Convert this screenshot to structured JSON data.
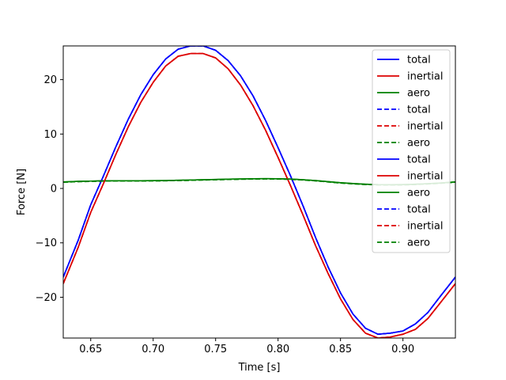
{
  "chart_data": {
    "type": "line",
    "xlabel": "Time [s]",
    "ylabel": "Force [N]",
    "xlim": [
      0.628,
      0.942
    ],
    "ylim": [
      -27.5,
      26.2
    ],
    "xticks": [
      0.65,
      0.7,
      0.75,
      0.8,
      0.85,
      0.9
    ],
    "xtick_labels": [
      "0.65",
      "0.70",
      "0.75",
      "0.80",
      "0.85",
      "0.90"
    ],
    "yticks": [
      -20,
      -10,
      0,
      10,
      20
    ],
    "ytick_labels": [
      "−20",
      "−10",
      "0",
      "10",
      "20"
    ],
    "grid": false,
    "legend_position": "top-right",
    "x": [
      0.628,
      0.64,
      0.65,
      0.66,
      0.67,
      0.68,
      0.69,
      0.7,
      0.71,
      0.72,
      0.73,
      0.74,
      0.75,
      0.76,
      0.77,
      0.78,
      0.79,
      0.8,
      0.81,
      0.82,
      0.83,
      0.84,
      0.85,
      0.86,
      0.87,
      0.88,
      0.89,
      0.9,
      0.91,
      0.92,
      0.93,
      0.942
    ],
    "series": [
      {
        "name": "total",
        "color": "#0000ff",
        "style": "solid",
        "y": [
          -16.3,
          -9.5,
          -3.0,
          2.2,
          7.6,
          12.7,
          17.2,
          20.9,
          23.8,
          25.6,
          26.2,
          26.2,
          25.4,
          23.5,
          20.7,
          17.0,
          12.5,
          7.5,
          2.3,
          -3.2,
          -9.0,
          -14.4,
          -19.2,
          -23.1,
          -25.7,
          -26.8,
          -26.6,
          -26.2,
          -24.9,
          -22.8,
          -19.8,
          -16.3
        ]
      },
      {
        "name": "inertial",
        "color": "#dd0000",
        "style": "solid",
        "y": [
          -17.5,
          -10.8,
          -4.4,
          0.8,
          6.2,
          11.3,
          15.8,
          19.5,
          22.5,
          24.3,
          24.8,
          24.8,
          24.0,
          22.0,
          19.0,
          15.2,
          10.7,
          5.7,
          0.5,
          -4.9,
          -10.5,
          -15.6,
          -20.3,
          -24.1,
          -26.6,
          -27.5,
          -27.3,
          -26.8,
          -25.9,
          -23.9,
          -21.0,
          -17.5
        ]
      },
      {
        "name": "aero",
        "color": "#008000",
        "style": "solid",
        "y": [
          1.2,
          1.3,
          1.35,
          1.4,
          1.42,
          1.42,
          1.42,
          1.43,
          1.45,
          1.5,
          1.55,
          1.6,
          1.65,
          1.7,
          1.75,
          1.78,
          1.8,
          1.78,
          1.72,
          1.6,
          1.45,
          1.25,
          1.05,
          0.9,
          0.78,
          0.7,
          0.68,
          0.7,
          0.78,
          0.88,
          1.0,
          1.2
        ]
      },
      {
        "name": "total",
        "color": "#0000ff",
        "style": "dashed",
        "y": [
          -16.3,
          -9.5,
          -3.0,
          2.2,
          7.6,
          12.7,
          17.2,
          20.9,
          23.8,
          25.6,
          26.2,
          26.2,
          25.4,
          23.5,
          20.7,
          17.0,
          12.5,
          7.5,
          2.3,
          -3.2,
          -9.0,
          -14.4,
          -19.2,
          -23.1,
          -25.7,
          -26.8,
          -26.6,
          -26.2,
          -24.9,
          -22.8,
          -19.8,
          -16.3
        ]
      },
      {
        "name": "inertial",
        "color": "#dd0000",
        "style": "dashed",
        "y": [
          -17.5,
          -10.8,
          -4.4,
          0.8,
          6.2,
          11.3,
          15.8,
          19.5,
          22.5,
          24.3,
          24.8,
          24.8,
          24.0,
          22.0,
          19.0,
          15.2,
          10.7,
          5.7,
          0.5,
          -4.9,
          -10.5,
          -15.6,
          -20.3,
          -24.1,
          -26.6,
          -27.5,
          -27.3,
          -26.8,
          -25.9,
          -23.9,
          -21.0,
          -17.5
        ]
      },
      {
        "name": "aero",
        "color": "#008000",
        "style": "dashed",
        "y": [
          1.15,
          1.25,
          1.3,
          1.35,
          1.37,
          1.38,
          1.38,
          1.39,
          1.41,
          1.45,
          1.5,
          1.55,
          1.6,
          1.65,
          1.7,
          1.73,
          1.75,
          1.73,
          1.67,
          1.55,
          1.4,
          1.2,
          1.0,
          0.85,
          0.73,
          0.65,
          0.63,
          0.65,
          0.73,
          0.83,
          0.95,
          1.15
        ]
      },
      {
        "name": "total",
        "color": "#0000ff",
        "style": "solid",
        "y": [
          -16.3,
          -9.5,
          -3.0,
          2.2,
          7.6,
          12.7,
          17.2,
          20.9,
          23.8,
          25.6,
          26.2,
          26.2,
          25.4,
          23.5,
          20.7,
          17.0,
          12.5,
          7.5,
          2.3,
          -3.2,
          -9.0,
          -14.4,
          -19.2,
          -23.1,
          -25.7,
          -26.8,
          -26.6,
          -26.2,
          -24.9,
          -22.8,
          -19.8,
          -16.3
        ]
      },
      {
        "name": "inertial",
        "color": "#dd0000",
        "style": "solid",
        "y": [
          -17.5,
          -10.8,
          -4.4,
          0.8,
          6.2,
          11.3,
          15.8,
          19.5,
          22.5,
          24.3,
          24.8,
          24.8,
          24.0,
          22.0,
          19.0,
          15.2,
          10.7,
          5.7,
          0.5,
          -4.9,
          -10.5,
          -15.6,
          -20.3,
          -24.1,
          -26.6,
          -27.5,
          -27.3,
          -26.8,
          -25.9,
          -23.9,
          -21.0,
          -17.5
        ]
      },
      {
        "name": "aero",
        "color": "#008000",
        "style": "solid",
        "y": [
          1.2,
          1.3,
          1.35,
          1.4,
          1.42,
          1.42,
          1.42,
          1.43,
          1.45,
          1.5,
          1.55,
          1.6,
          1.65,
          1.7,
          1.75,
          1.78,
          1.8,
          1.78,
          1.72,
          1.6,
          1.45,
          1.25,
          1.05,
          0.9,
          0.78,
          0.7,
          0.68,
          0.7,
          0.78,
          0.88,
          1.0,
          1.2
        ]
      },
      {
        "name": "total",
        "color": "#0000ff",
        "style": "dashed",
        "y": [
          -16.3,
          -9.5,
          -3.0,
          2.2,
          7.6,
          12.7,
          17.2,
          20.9,
          23.8,
          25.6,
          26.2,
          26.2,
          25.4,
          23.5,
          20.7,
          17.0,
          12.5,
          7.5,
          2.3,
          -3.2,
          -9.0,
          -14.4,
          -19.2,
          -23.1,
          -25.7,
          -26.8,
          -26.6,
          -26.2,
          -24.9,
          -22.8,
          -19.8,
          -16.3
        ]
      },
      {
        "name": "inertial",
        "color": "#dd0000",
        "style": "dashed",
        "y": [
          -17.5,
          -10.8,
          -4.4,
          0.8,
          6.2,
          11.3,
          15.8,
          19.5,
          22.5,
          24.3,
          24.8,
          24.8,
          24.0,
          22.0,
          19.0,
          15.2,
          10.7,
          5.7,
          0.5,
          -4.9,
          -10.5,
          -15.6,
          -20.3,
          -24.1,
          -26.6,
          -27.5,
          -27.3,
          -26.8,
          -25.9,
          -23.9,
          -21.0,
          -17.5
        ]
      },
      {
        "name": "aero",
        "color": "#008000",
        "style": "dashed",
        "y": [
          1.15,
          1.25,
          1.3,
          1.35,
          1.37,
          1.38,
          1.38,
          1.39,
          1.41,
          1.45,
          1.5,
          1.55,
          1.6,
          1.65,
          1.7,
          1.73,
          1.75,
          1.73,
          1.67,
          1.55,
          1.4,
          1.2,
          1.0,
          0.85,
          0.73,
          0.65,
          0.63,
          0.65,
          0.73,
          0.83,
          0.95,
          1.15
        ]
      }
    ]
  }
}
